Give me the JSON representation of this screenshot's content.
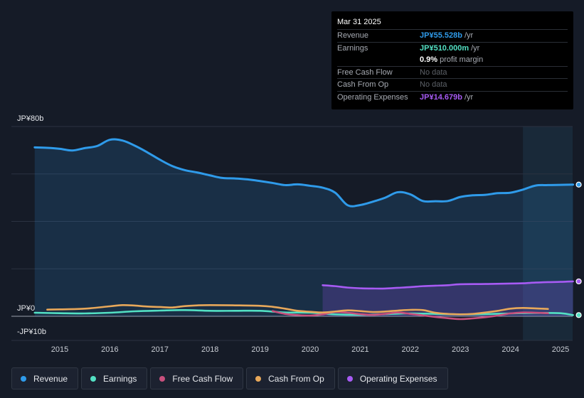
{
  "tooltip": {
    "date": "Mar 31 2025",
    "rows": [
      {
        "label": "Revenue",
        "value": "JP¥55.528b",
        "unit": "/yr",
        "color": "#2f9bea"
      },
      {
        "label": "Earnings",
        "value": "JP¥510.000m",
        "unit": "/yr",
        "color": "#53e0c3"
      },
      {
        "label": "",
        "value": "0.9%",
        "unit": "profit margin",
        "color": "#ffffff"
      },
      {
        "label": "Free Cash Flow",
        "value": "No data",
        "unit": "",
        "color": ""
      },
      {
        "label": "Cash From Op",
        "value": "No data",
        "unit": "",
        "color": ""
      },
      {
        "label": "Operating Expenses",
        "value": "JP¥14.679b",
        "unit": "/yr",
        "color": "#a75bf4"
      }
    ]
  },
  "legend": [
    {
      "label": "Revenue",
      "color": "#2f9bea"
    },
    {
      "label": "Earnings",
      "color": "#53e0c3"
    },
    {
      "label": "Free Cash Flow",
      "color": "#c8507d"
    },
    {
      "label": "Cash From Op",
      "color": "#e8a85a"
    },
    {
      "label": "Operating Expenses",
      "color": "#a75bf4"
    }
  ],
  "chart_data": {
    "type": "area",
    "unit": "JP¥ billions",
    "ylim": [
      -10,
      80
    ],
    "y_tick_labels": [
      "JP¥80b",
      "JP¥0",
      "-JP¥10b"
    ],
    "x_tick_labels": [
      "2015",
      "2016",
      "2017",
      "2018",
      "2019",
      "2020",
      "2021",
      "2022",
      "2023",
      "2024",
      "2025"
    ],
    "highlight_from": 2024.25,
    "series": [
      {
        "name": "Revenue",
        "color": "#2f9bea",
        "points": [
          [
            2014.5,
            71.2
          ],
          [
            2014.75,
            71.0
          ],
          [
            2015.0,
            70.6
          ],
          [
            2015.25,
            69.9
          ],
          [
            2015.5,
            70.9
          ],
          [
            2015.75,
            71.8
          ],
          [
            2016.0,
            74.4
          ],
          [
            2016.25,
            74.1
          ],
          [
            2016.5,
            71.9
          ],
          [
            2016.75,
            69.1
          ],
          [
            2017.0,
            66.0
          ],
          [
            2017.25,
            63.3
          ],
          [
            2017.5,
            61.6
          ],
          [
            2017.75,
            60.6
          ],
          [
            2018.0,
            59.4
          ],
          [
            2018.25,
            58.3
          ],
          [
            2018.5,
            58.1
          ],
          [
            2018.75,
            57.7
          ],
          [
            2019.0,
            57.0
          ],
          [
            2019.25,
            56.2
          ],
          [
            2019.5,
            55.3
          ],
          [
            2019.75,
            55.6
          ],
          [
            2020.0,
            55.0
          ],
          [
            2020.25,
            54.2
          ],
          [
            2020.5,
            52.1
          ],
          [
            2020.75,
            46.8
          ],
          [
            2021.0,
            46.9
          ],
          [
            2021.25,
            48.3
          ],
          [
            2021.5,
            50.0
          ],
          [
            2021.75,
            52.3
          ],
          [
            2022.0,
            51.4
          ],
          [
            2022.25,
            48.6
          ],
          [
            2022.5,
            48.5
          ],
          [
            2022.75,
            48.6
          ],
          [
            2023.0,
            50.3
          ],
          [
            2023.25,
            51.0
          ],
          [
            2023.5,
            51.2
          ],
          [
            2023.75,
            51.9
          ],
          [
            2024.0,
            52.1
          ],
          [
            2024.25,
            53.4
          ],
          [
            2024.5,
            55.1
          ],
          [
            2024.75,
            55.3
          ],
          [
            2025.0,
            55.4
          ],
          [
            2025.25,
            55.5
          ]
        ]
      },
      {
        "name": "Earnings",
        "color": "#53e0c3",
        "points": [
          [
            2014.5,
            1.5
          ],
          [
            2015.0,
            1.3
          ],
          [
            2015.5,
            1.2
          ],
          [
            2016.0,
            1.5
          ],
          [
            2016.5,
            2.1
          ],
          [
            2017.0,
            2.4
          ],
          [
            2017.5,
            2.6
          ],
          [
            2018.0,
            2.3
          ],
          [
            2018.5,
            2.3
          ],
          [
            2019.0,
            2.3
          ],
          [
            2019.5,
            1.6
          ],
          [
            2020.0,
            1.5
          ],
          [
            2020.5,
            0.8
          ],
          [
            2021.0,
            0.6
          ],
          [
            2021.5,
            0.9
          ],
          [
            2022.0,
            1.2
          ],
          [
            2022.5,
            1.0
          ],
          [
            2023.0,
            0.8
          ],
          [
            2023.5,
            0.9
          ],
          [
            2024.0,
            1.2
          ],
          [
            2024.5,
            1.4
          ],
          [
            2025.0,
            1.3
          ],
          [
            2025.25,
            0.5
          ]
        ]
      },
      {
        "name": "Free Cash Flow",
        "color": "#c8507d",
        "points": [
          [
            2019.25,
            2.2
          ],
          [
            2019.5,
            1.0
          ],
          [
            2019.75,
            0.5
          ],
          [
            2020.0,
            0.3
          ],
          [
            2020.25,
            0.8
          ],
          [
            2020.5,
            1.8
          ],
          [
            2020.75,
            1.5
          ],
          [
            2021.0,
            0.9
          ],
          [
            2021.25,
            0.6
          ],
          [
            2021.5,
            1.0
          ],
          [
            2021.75,
            1.6
          ],
          [
            2022.0,
            1.0
          ],
          [
            2022.25,
            0.4
          ],
          [
            2022.5,
            -0.3
          ],
          [
            2022.75,
            -0.8
          ],
          [
            2023.0,
            -1.2
          ],
          [
            2023.25,
            -0.9
          ],
          [
            2023.5,
            -0.4
          ],
          [
            2023.75,
            0.3
          ],
          [
            2024.0,
            1.2
          ],
          [
            2024.25,
            1.6
          ],
          [
            2024.5,
            1.5
          ],
          [
            2024.75,
            1.3
          ]
        ]
      },
      {
        "name": "Cash From Op",
        "color": "#e8a85a",
        "points": [
          [
            2014.75,
            2.8
          ],
          [
            2015.0,
            2.9
          ],
          [
            2015.5,
            3.2
          ],
          [
            2016.0,
            4.2
          ],
          [
            2016.25,
            4.7
          ],
          [
            2016.5,
            4.5
          ],
          [
            2016.75,
            4.1
          ],
          [
            2017.0,
            3.9
          ],
          [
            2017.25,
            3.7
          ],
          [
            2017.5,
            4.3
          ],
          [
            2017.75,
            4.6
          ],
          [
            2018.0,
            4.7
          ],
          [
            2018.5,
            4.6
          ],
          [
            2019.0,
            4.4
          ],
          [
            2019.25,
            4.0
          ],
          [
            2019.5,
            3.2
          ],
          [
            2019.75,
            2.3
          ],
          [
            2020.0,
            1.9
          ],
          [
            2020.25,
            1.6
          ],
          [
            2020.5,
            2.0
          ],
          [
            2020.75,
            2.5
          ],
          [
            2021.0,
            2.2
          ],
          [
            2021.25,
            1.8
          ],
          [
            2021.5,
            2.0
          ],
          [
            2021.75,
            2.4
          ],
          [
            2022.0,
            2.7
          ],
          [
            2022.25,
            2.6
          ],
          [
            2022.5,
            1.5
          ],
          [
            2022.75,
            1.0
          ],
          [
            2023.0,
            0.8
          ],
          [
            2023.25,
            1.0
          ],
          [
            2023.5,
            1.6
          ],
          [
            2023.75,
            2.3
          ],
          [
            2024.0,
            3.2
          ],
          [
            2024.25,
            3.5
          ],
          [
            2024.5,
            3.3
          ],
          [
            2024.75,
            3.1
          ]
        ]
      },
      {
        "name": "Operating Expenses",
        "color": "#a75bf4",
        "points": [
          [
            2020.25,
            13.1
          ],
          [
            2020.5,
            12.7
          ],
          [
            2020.75,
            12.1
          ],
          [
            2021.0,
            11.8
          ],
          [
            2021.25,
            11.7
          ],
          [
            2021.5,
            11.7
          ],
          [
            2021.75,
            12.0
          ],
          [
            2022.0,
            12.3
          ],
          [
            2022.25,
            12.7
          ],
          [
            2022.5,
            12.9
          ],
          [
            2022.75,
            13.1
          ],
          [
            2023.0,
            13.5
          ],
          [
            2023.5,
            13.6
          ],
          [
            2024.0,
            13.8
          ],
          [
            2024.25,
            13.9
          ],
          [
            2024.5,
            14.2
          ],
          [
            2024.75,
            14.4
          ],
          [
            2025.0,
            14.5
          ],
          [
            2025.25,
            14.7
          ]
        ]
      }
    ]
  }
}
